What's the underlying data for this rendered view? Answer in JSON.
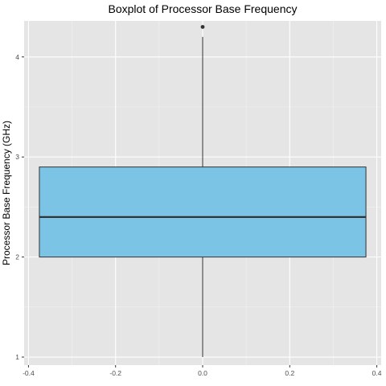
{
  "chart_data": {
    "type": "boxplot",
    "title": "Boxplot of Processor Base Frequency",
    "xlabel": "",
    "ylabel": "Processor Base Frequency (GHz)",
    "xlim": [
      -0.41,
      0.41
    ],
    "ylim": [
      0.92,
      4.36
    ],
    "x_ticks": [
      -0.4,
      -0.2,
      0.0,
      0.2,
      0.4
    ],
    "x_tick_labels": [
      "-0.4",
      "-0.2",
      "0.0",
      "0.2",
      "0.4"
    ],
    "y_ticks": [
      1,
      2,
      3,
      4
    ],
    "y_tick_labels": [
      "1",
      "2",
      "3",
      "4"
    ],
    "grid": true,
    "box": {
      "x_center": 0.0,
      "x_min": -0.375,
      "x_max": 0.375,
      "whisker_low": 1.0,
      "q1": 2.0,
      "median": 2.4,
      "q3": 2.9,
      "whisker_high": 4.2,
      "outliers": [
        4.3
      ],
      "fill": "#7bc4e6",
      "stroke": "#333333"
    },
    "colors": {
      "panel_background": "#e5e5e5",
      "grid_major": "#ffffff",
      "tick": "#333333"
    }
  }
}
